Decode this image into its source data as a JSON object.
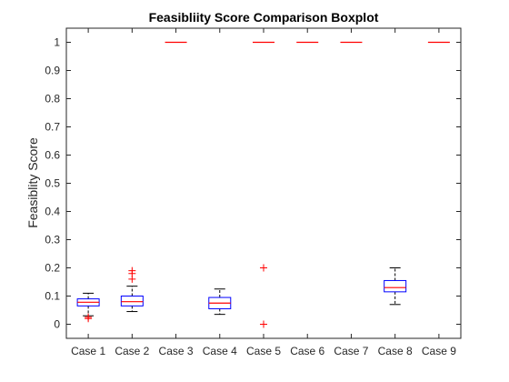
{
  "chart_data": {
    "type": "boxplot",
    "title": "Feasibliity Score Comparison Boxplot",
    "xlabel": "",
    "ylabel": "Feasiblity Score",
    "ylim": [
      -0.05,
      1.05
    ],
    "yticks": [
      "0",
      "0.1",
      "0.2",
      "0.3",
      "0.4",
      "0.5",
      "0.6",
      "0.7",
      "0.8",
      "0.9",
      "1"
    ],
    "categories": [
      "Case 1",
      "Case 2",
      "Case 3",
      "Case 4",
      "Case 5",
      "Case 6",
      "Case 7",
      "Case 8",
      "Case 9"
    ],
    "boxes": [
      {
        "whisker_low": 0.03,
        "q1": 0.065,
        "median": 0.078,
        "q3": 0.09,
        "whisker_high": 0.11,
        "outliers": [
          0.02,
          0.025
        ]
      },
      {
        "whisker_low": 0.045,
        "q1": 0.065,
        "median": 0.08,
        "q3": 0.1,
        "whisker_high": 0.135,
        "outliers": [
          0.16,
          0.18,
          0.19
        ]
      },
      {
        "whisker_low": 1.0,
        "q1": 1.0,
        "median": 1.0,
        "q3": 1.0,
        "whisker_high": 1.0,
        "outliers": []
      },
      {
        "whisker_low": 0.035,
        "q1": 0.055,
        "median": 0.075,
        "q3": 0.095,
        "whisker_high": 0.125,
        "outliers": []
      },
      {
        "whisker_low": 1.0,
        "q1": 1.0,
        "median": 1.0,
        "q3": 1.0,
        "whisker_high": 1.0,
        "outliers": [
          0.2,
          0.0
        ]
      },
      {
        "whisker_low": 1.0,
        "q1": 1.0,
        "median": 1.0,
        "q3": 1.0,
        "whisker_high": 1.0,
        "outliers": []
      },
      {
        "whisker_low": 1.0,
        "q1": 1.0,
        "median": 1.0,
        "q3": 1.0,
        "whisker_high": 1.0,
        "outliers": []
      },
      {
        "whisker_low": 0.07,
        "q1": 0.115,
        "median": 0.13,
        "q3": 0.155,
        "whisker_high": 0.2,
        "outliers": []
      },
      {
        "whisker_low": 1.0,
        "q1": 1.0,
        "median": 1.0,
        "q3": 1.0,
        "whisker_high": 1.0,
        "outliers": []
      }
    ],
    "grid": false,
    "colors": {
      "box": "#0000ff",
      "median": "#ff0000",
      "whisker": "#000000",
      "outlier": "#ff0000",
      "axis": "#262626"
    }
  }
}
